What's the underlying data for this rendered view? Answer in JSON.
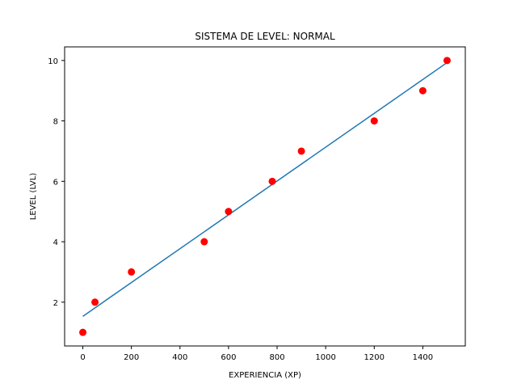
{
  "chart_data": {
    "type": "scatter",
    "title": "SISTEMA DE LEVEL: NORMAL",
    "xlabel": "EXPERIENCIA (XP)",
    "ylabel": "LEVEL (LVL)",
    "xlim": [
      -75,
      1575
    ],
    "ylim": [
      0.55,
      10.45
    ],
    "xticks": [
      0,
      200,
      400,
      600,
      800,
      1000,
      1200,
      1400
    ],
    "yticks": [
      2,
      4,
      6,
      8,
      10
    ],
    "grid": false,
    "series": [
      {
        "type": "scatter",
        "color": "#ff0000",
        "x": [
          0,
          50,
          200,
          500,
          600,
          780,
          900,
          1200,
          1400,
          1500
        ],
        "y": [
          1,
          2,
          3,
          4,
          5,
          6,
          7,
          8,
          9,
          10
        ]
      },
      {
        "type": "line",
        "color": "#1f77b4",
        "x": [
          0,
          1500
        ],
        "y": [
          1.53,
          9.93
        ]
      }
    ]
  }
}
